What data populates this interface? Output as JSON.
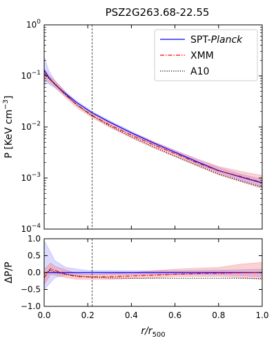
{
  "chart_data": [
    {
      "type": "line",
      "title": "PSZ2G263.68-22.55",
      "xlim": [
        0,
        1
      ],
      "ylim": [
        0.0001,
        1
      ],
      "yscale": "log",
      "ylabel": "P [KeV cm",
      "ylabel_sup": "−3",
      "ylabel_close": "]",
      "y_tick_labels": [
        {
          "base": "10",
          "exp": "−4",
          "value": 0.0001
        },
        {
          "base": "10",
          "exp": "−3",
          "value": 0.001
        },
        {
          "base": "10",
          "exp": "−2",
          "value": 0.01
        },
        {
          "base": "10",
          "exp": "−1",
          "value": 0.1
        },
        {
          "base": "10",
          "exp": "0",
          "value": 1
        }
      ],
      "vline_x": 0.22,
      "legend_position": "top-right",
      "series": [
        {
          "name": "SPT-",
          "name_italic": "Planck",
          "color": "#0000ff",
          "style": "solid",
          "x": [
            0.0,
            0.02,
            0.05,
            0.1,
            0.15,
            0.22,
            0.3,
            0.4,
            0.5,
            0.6,
            0.7,
            0.8,
            0.9,
            1.0
          ],
          "y": [
            0.13,
            0.095,
            0.068,
            0.044,
            0.03,
            0.019,
            0.0125,
            0.0077,
            0.0049,
            0.0032,
            0.0021,
            0.0014,
            0.00105,
            0.0008
          ],
          "band_low": [
            0.07,
            0.07,
            0.058,
            0.04,
            0.028,
            0.0178,
            0.0117,
            0.0072,
            0.00455,
            0.003,
            0.0019,
            0.00128,
            0.00092,
            0.00068
          ],
          "band_high": [
            0.24,
            0.13,
            0.08,
            0.048,
            0.032,
            0.0202,
            0.0133,
            0.0082,
            0.0052,
            0.0034,
            0.0023,
            0.0016,
            0.0012,
            0.00094
          ]
        },
        {
          "name": "XMM",
          "color": "#ff0000",
          "style": "dashdot",
          "x": [
            0.0,
            0.02,
            0.05,
            0.1,
            0.15,
            0.22,
            0.3,
            0.4,
            0.5,
            0.6,
            0.7,
            0.8,
            0.9,
            1.0
          ],
          "y": [
            0.11,
            0.09,
            0.07,
            0.042,
            0.027,
            0.0168,
            0.011,
            0.0069,
            0.0045,
            0.003,
            0.002,
            0.00138,
            0.00108,
            0.00082
          ],
          "band_low": [
            0.085,
            0.076,
            0.06,
            0.037,
            0.024,
            0.0152,
            0.0098,
            0.0061,
            0.0039,
            0.0026,
            0.00172,
            0.00115,
            0.00085,
            0.00062
          ],
          "band_high": [
            0.14,
            0.105,
            0.08,
            0.047,
            0.03,
            0.0185,
            0.0122,
            0.0078,
            0.0052,
            0.0035,
            0.0024,
            0.00168,
            0.00136,
            0.00112
          ]
        },
        {
          "name": "A10",
          "color": "#000000",
          "style": "dotted",
          "x": [
            0.0,
            0.02,
            0.05,
            0.1,
            0.15,
            0.22,
            0.3,
            0.4,
            0.5,
            0.6,
            0.7,
            0.8,
            0.9,
            1.0
          ],
          "y": [
            0.12,
            0.092,
            0.068,
            0.042,
            0.027,
            0.0165,
            0.0105,
            0.0064,
            0.0041,
            0.0027,
            0.0018,
            0.0012,
            0.00088,
            0.00066
          ]
        }
      ]
    },
    {
      "type": "line",
      "xlim": [
        0,
        1
      ],
      "ylim": [
        -1,
        1
      ],
      "ylabel": "ΔP/P",
      "xlabel_italic": "r/r",
      "xlabel_sub": "500",
      "x_ticks": [
        "0.0",
        "0.2",
        "0.4",
        "0.6",
        "0.8",
        "1.0"
      ],
      "y_ticks": [
        "−1.0",
        "−0.5",
        "0.0",
        "0.5",
        "1.0"
      ],
      "vline_x": 0.22,
      "series": [
        {
          "name": "SPT-Planck",
          "color": "#0000ff",
          "style": "solid",
          "x": [
            0.0,
            0.05,
            0.1,
            0.2,
            0.4,
            0.6,
            0.8,
            1.0
          ],
          "y": [
            0.0,
            0.0,
            0.0,
            0.0,
            0.0,
            0.0,
            0.0,
            0.0
          ],
          "band_low": [
            -0.5,
            -0.15,
            -0.08,
            -0.06,
            -0.06,
            -0.06,
            -0.07,
            -0.12
          ],
          "band_high": [
            0.95,
            0.35,
            0.15,
            0.06,
            0.05,
            0.05,
            0.07,
            0.1
          ]
        },
        {
          "name": "XMM",
          "color": "#ff0000",
          "style": "dashdot",
          "x": [
            0.0,
            0.03,
            0.05,
            0.1,
            0.15,
            0.22,
            0.3,
            0.4,
            0.5,
            0.6,
            0.7,
            0.8,
            0.9,
            1.0
          ],
          "y": [
            -0.15,
            0.12,
            0.06,
            -0.05,
            -0.12,
            -0.13,
            -0.12,
            -0.1,
            -0.08,
            -0.05,
            -0.03,
            -0.02,
            -0.01,
            0.0
          ],
          "band_low": [
            -0.35,
            -0.05,
            -0.08,
            -0.15,
            -0.2,
            -0.2,
            -0.2,
            -0.18,
            -0.16,
            -0.12,
            -0.12,
            -0.12,
            -0.15,
            -0.2
          ],
          "band_high": [
            0.1,
            0.28,
            0.18,
            0.08,
            -0.03,
            -0.05,
            -0.03,
            0.0,
            0.05,
            0.1,
            0.13,
            0.15,
            0.25,
            0.3
          ]
        },
        {
          "name": "A10",
          "color": "#000000",
          "style": "dotted",
          "x": [
            0.0,
            0.03,
            0.05,
            0.1,
            0.15,
            0.22,
            0.3,
            0.4,
            0.5,
            0.6,
            0.7,
            0.8,
            0.9,
            1.0
          ],
          "y": [
            -0.05,
            0.08,
            0.0,
            -0.05,
            -0.1,
            -0.13,
            -0.16,
            -0.17,
            -0.17,
            -0.17,
            -0.17,
            -0.17,
            -0.17,
            -0.18
          ]
        }
      ]
    }
  ]
}
